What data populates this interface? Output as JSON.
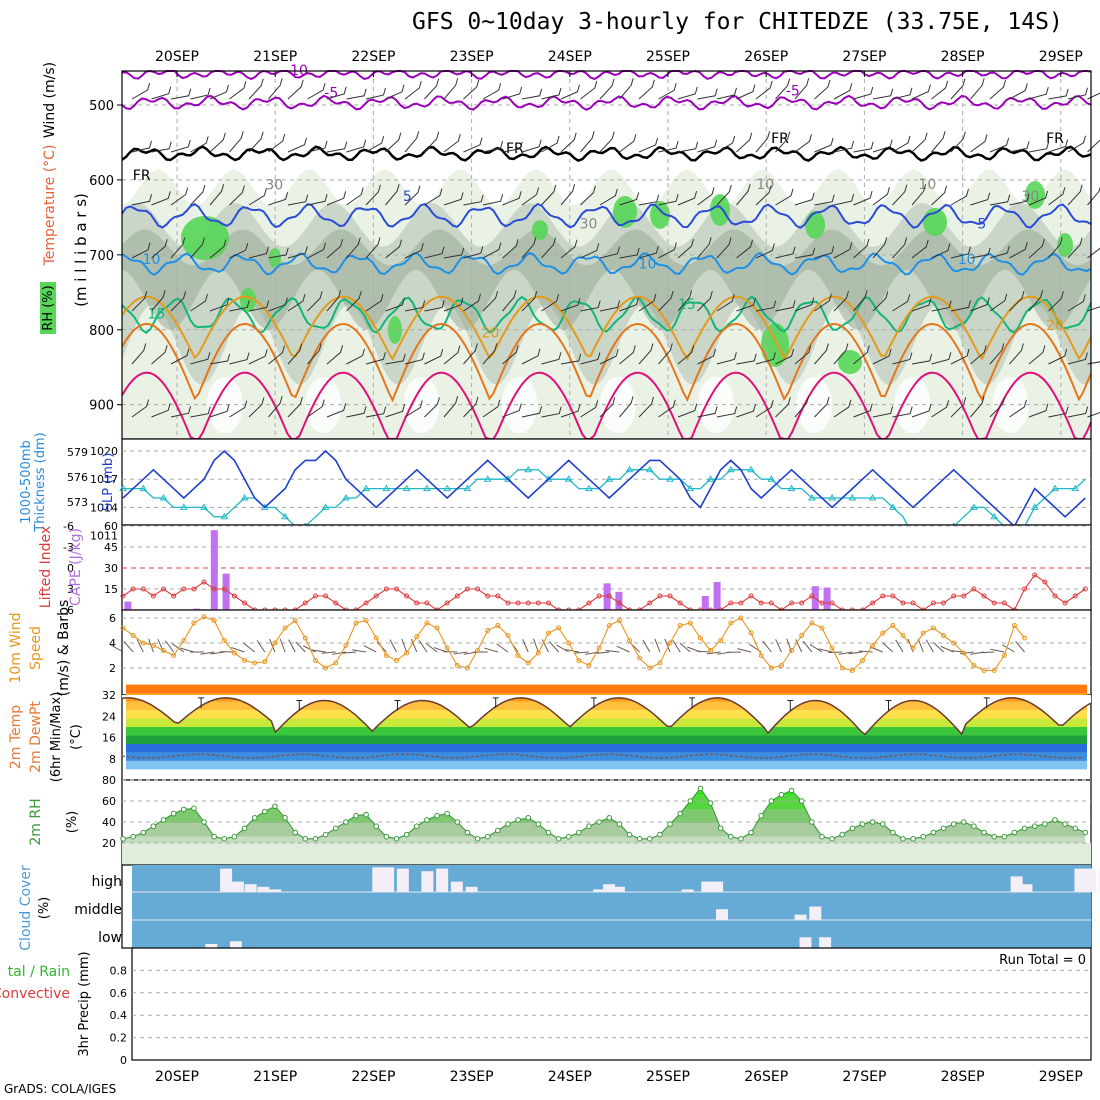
{
  "title": "GFS 0~10day 3-hourly for CHITEDZE (33.75E, 14S)",
  "credit": "GrADS: COLA/IGES",
  "colors": {
    "purple_contour": "#9a00b8",
    "freezing": "#000000",
    "blue5": "#2a4bd8",
    "blue10": "#1e90e6",
    "green15": "#12b57a",
    "orange20": "#e59a1a",
    "orange25": "#e5761a",
    "magenta30": "#e0107a",
    "rh_light": "#eaf2e6",
    "rh_mid": "#c4d2c2",
    "rh_dark": "#9aaa98",
    "rh_green": "#57d657",
    "slp": "#1f3fcc",
    "thickness": "#20b8c8",
    "lifted": "#dd3c3c",
    "cape": "#c070f0",
    "wind10m": "#e8961e",
    "cloud_bg": "#66aad6",
    "cloud_cover": "#f4eef6",
    "rh2m": "#3a9a3a"
  },
  "chart_data": [
    {
      "type": "contour",
      "name": "pressure-level panel",
      "ylabel": "(millibars)",
      "legend_labels": [
        "Wind (m/s)",
        "Temperature (°C)",
        "RH (%)"
      ],
      "y_ticks": [
        500,
        600,
        700,
        800,
        900
      ],
      "ylim": [
        1000,
        450
      ],
      "x_dates": [
        "20SEP",
        "21SEP",
        "22SEP",
        "23SEP",
        "24SEP",
        "25SEP",
        "26SEP",
        "27SEP",
        "28SEP",
        "29SEP"
      ],
      "contour_labels": [
        {
          "text": "-10",
          "day": 1.1,
          "p": 460
        },
        {
          "text": "-5",
          "day": 1.5,
          "p": 490
        },
        {
          "text": "-5",
          "day": 6.2,
          "p": 487
        },
        {
          "text": "FR",
          "day": -0.45,
          "p": 600
        },
        {
          "text": "FR",
          "day": 3.35,
          "p": 564
        },
        {
          "text": "FR",
          "day": 6.05,
          "p": 551
        },
        {
          "text": "FR",
          "day": 8.85,
          "p": 551
        },
        {
          "text": "5",
          "day": 2.3,
          "p": 628
        },
        {
          "text": "5",
          "day": 8.15,
          "p": 665
        },
        {
          "text": "10",
          "day": -0.35,
          "p": 712
        },
        {
          "text": "10",
          "day": 4.7,
          "p": 718
        },
        {
          "text": "10",
          "day": 7.95,
          "p": 712
        },
        {
          "text": "15",
          "day": -0.3,
          "p": 785
        },
        {
          "text": "15",
          "day": 5.1,
          "p": 772
        },
        {
          "text": "20",
          "day": 3.1,
          "p": 810
        },
        {
          "text": "20",
          "day": 8.85,
          "p": 800
        },
        {
          "text": "30",
          "day": 0.9,
          "p": 613
        },
        {
          "text": "30",
          "day": 4.1,
          "p": 665
        },
        {
          "text": "10",
          "day": 5.9,
          "p": 612
        },
        {
          "text": "10",
          "day": 7.55,
          "p": 612
        },
        {
          "text": "30",
          "day": 8.6,
          "p": 628
        }
      ],
      "isotherms": [
        {
          "label": "-10",
          "base": 458,
          "amp": 5
        },
        {
          "label": "-5",
          "base": 497,
          "amp": 8
        },
        {
          "label": "FR",
          "base": 565,
          "amp": 8
        },
        {
          "label": "5",
          "base": 648,
          "amp": 18
        },
        {
          "label": "10",
          "base": 712,
          "amp": 16
        },
        {
          "label": "15",
          "base": 780,
          "amp": 30
        },
        {
          "label": "20",
          "base": 840,
          "amp": 45
        },
        {
          "label": "25",
          "base": 895,
          "amp": 55
        },
        {
          "label": "30",
          "base": 960,
          "amp": 55
        }
      ]
    },
    {
      "type": "line",
      "name": "slp-thickness",
      "ylabel_left": "1000-500mb Thickness (dm)",
      "ylabel_right": "SLP (mb)",
      "left_ticks": [
        573,
        576,
        579
      ],
      "right_ticks": [
        1011,
        1014,
        1017,
        1020
      ],
      "series": [
        {
          "name": "SLP",
          "values": [
            1015,
            1016,
            1017,
            1018,
            1017,
            1016,
            1015,
            1016,
            1017,
            1019,
            1020,
            1019,
            1017,
            1015,
            1014,
            1015,
            1016,
            1018,
            1019,
            1019,
            1020,
            1019,
            1017,
            1016,
            1015,
            1014,
            1015,
            1016,
            1017,
            1018,
            1017,
            1016,
            1015,
            1016,
            1017,
            1018,
            1019,
            1018,
            1017,
            1016,
            1015,
            1016,
            1017,
            1018,
            1019,
            1018,
            1017,
            1016,
            1015,
            1016,
            1017,
            1018,
            1019,
            1019,
            1018,
            1017,
            1015,
            1014,
            1016,
            1018,
            1019,
            1018,
            1016,
            1015,
            1016,
            1017,
            1018,
            1017,
            1016,
            1015,
            1014,
            1015,
            1016,
            1017,
            1018,
            1017,
            1016,
            1015,
            1014,
            1015,
            1016,
            1017,
            1018,
            1017,
            1016,
            1015,
            1014,
            1013,
            1012,
            1014,
            1016,
            1015,
            1014,
            1013,
            1014,
            1015
          ]
        },
        {
          "name": "Thickness",
          "values": [
            1016,
            1016,
            1016,
            1015,
            1015,
            1014,
            1014,
            1014,
            1014,
            1013,
            1013,
            1014,
            1015,
            1015,
            1014,
            1014,
            1013,
            1012,
            1012,
            1013,
            1014,
            1014,
            1015,
            1015,
            1016,
            1016,
            1016,
            1016,
            1016,
            1016,
            1016,
            1016,
            1016,
            1016,
            1016,
            1017,
            1017,
            1017,
            1017,
            1018,
            1018,
            1018,
            1017,
            1017,
            1017,
            1016,
            1016,
            1016,
            1017,
            1017,
            1018,
            1018,
            1018,
            1017,
            1017,
            1017,
            1016,
            1016,
            1017,
            1017,
            1018,
            1018,
            1018,
            1017,
            1017,
            1016,
            1016,
            1016,
            1015,
            1015,
            1015,
            1015,
            1015,
            1015,
            1015,
            1015,
            1014,
            1013,
            1011,
            1010,
            1010,
            1011,
            1012,
            1013,
            1014,
            1014,
            1013,
            1012,
            1011,
            1012,
            1014,
            1015,
            1016,
            1016,
            1016,
            1017
          ]
        }
      ]
    },
    {
      "type": "bar+line",
      "name": "cape-lifted",
      "ylabel_left": "Lifted Index",
      "ylabel_right": "CAPE (J/kg)",
      "left_ticks": [
        6,
        3,
        0,
        -3,
        -6
      ],
      "right_ticks": [
        15,
        30,
        45,
        60
      ],
      "lifted_index": [
        4,
        3,
        3,
        4,
        3,
        4,
        3,
        3,
        2,
        3,
        3,
        4,
        5,
        6,
        6,
        6,
        6,
        6,
        5,
        4,
        4,
        5,
        6,
        6,
        5,
        4,
        3,
        3,
        4,
        5,
        5,
        6,
        5,
        4,
        3,
        3,
        4,
        4,
        5,
        5,
        5,
        5,
        5,
        6,
        6,
        6,
        5,
        4,
        4,
        5,
        6,
        6,
        5,
        4,
        4,
        5,
        6,
        6,
        6,
        6,
        5,
        5,
        4,
        5,
        5,
        6,
        5,
        5,
        4,
        5,
        5,
        6,
        6,
        6,
        5,
        4,
        4,
        5,
        5,
        6,
        5,
        5,
        4,
        4,
        3,
        4,
        5,
        5,
        6,
        3,
        1,
        2,
        4,
        5,
        4,
        3
      ],
      "cape": [
        {
          "day": -0.5,
          "value": 6
        },
        {
          "day": 0.2,
          "value": 1
        },
        {
          "day": 0.38,
          "value": 57
        },
        {
          "day": 0.5,
          "value": 26
        },
        {
          "day": 4.38,
          "value": 19
        },
        {
          "day": 4.5,
          "value": 13
        },
        {
          "day": 5.38,
          "value": 10
        },
        {
          "day": 5.5,
          "value": 20
        },
        {
          "day": 6.5,
          "value": 17
        },
        {
          "day": 6.62,
          "value": 16
        }
      ]
    },
    {
      "type": "line",
      "name": "wind10m",
      "ylabel": "10m Wind Speed & Barbs (m/s)",
      "y_ticks": [
        2,
        4,
        6
      ],
      "values": [
        5.2,
        4.6,
        4.0,
        3.8,
        3.4,
        3.0,
        4.2,
        5.6,
        6.1,
        5.8,
        4.2,
        3.2,
        2.6,
        2.4,
        2.5,
        4.0,
        5.2,
        5.8,
        4.4,
        2.6,
        2.0,
        2.4,
        3.8,
        5.6,
        5.8,
        4.4,
        3.0,
        2.6,
        3.2,
        4.5,
        5.6,
        5.2,
        3.6,
        2.2,
        2.0,
        3.4,
        5.0,
        5.4,
        4.6,
        3.0,
        2.4,
        3.2,
        4.8,
        5.2,
        4.0,
        2.6,
        2.2,
        3.6,
        5.4,
        5.8,
        4.2,
        2.8,
        2.0,
        2.4,
        4.0,
        5.4,
        5.6,
        4.4,
        3.4,
        4.2,
        5.6,
        6.0,
        4.8,
        3.0,
        2.0,
        2.2,
        3.4,
        4.6,
        5.6,
        5.2,
        3.6,
        2.0,
        1.8,
        2.6,
        3.8,
        4.8,
        5.4,
        4.6,
        3.6,
        4.8,
        5.2,
        4.6,
        4.0,
        3.2,
        2.2,
        1.8,
        1.8,
        3.0,
        5.4,
        4.4
      ]
    },
    {
      "type": "area",
      "name": "temperature",
      "ylabel": "2m Temp 2m DewPt (6hr Min/Max) (°C)",
      "y_ticks": [
        8,
        16,
        24,
        32
      ],
      "temp_max_days": [
        0.5,
        1.5,
        2.5,
        3.5,
        4.5,
        5.5,
        6.5,
        7.5,
        8.5
      ],
      "temp_max_values": [
        31,
        30,
        30,
        31,
        31,
        31,
        30,
        30,
        31
      ],
      "temp_min_values": [
        21,
        18,
        19,
        20,
        20,
        19,
        17,
        17,
        20
      ],
      "dewpt_mean": 9
    },
    {
      "type": "area",
      "name": "rh2m",
      "ylabel": "2m RH (%)",
      "y_ticks": [
        20,
        40,
        60,
        80
      ],
      "values": [
        24,
        26,
        30,
        36,
        42,
        48,
        52,
        53,
        40,
        26,
        24,
        26,
        34,
        44,
        50,
        55,
        44,
        30,
        24,
        24,
        28,
        34,
        40,
        46,
        47,
        36,
        26,
        24,
        28,
        36,
        42,
        46,
        48,
        40,
        30,
        24,
        26,
        32,
        38,
        42,
        44,
        38,
        30,
        24,
        26,
        30,
        36,
        40,
        44,
        38,
        28,
        24,
        24,
        28,
        38,
        48,
        60,
        72,
        58,
        34,
        26,
        24,
        30,
        46,
        60,
        66,
        70,
        60,
        40,
        26,
        24,
        28,
        34,
        38,
        40,
        38,
        30,
        24,
        24,
        26,
        30,
        34,
        38,
        40,
        36,
        30,
        26,
        26,
        30,
        34,
        36,
        38,
        42,
        38,
        34,
        30
      ]
    },
    {
      "type": "bar",
      "name": "cloud-cover",
      "ylabel": "Cloud Cover (%)",
      "levels": [
        "high",
        "middle",
        "low"
      ],
      "high": [
        {
          "day": 0.5,
          "v": 90
        },
        {
          "day": 0.62,
          "v": 40
        },
        {
          "day": 0.75,
          "v": 30
        },
        {
          "day": 0.88,
          "v": 20
        },
        {
          "day": 1.0,
          "v": 10
        },
        {
          "day": 2.05,
          "v": 95
        },
        {
          "day": 2.15,
          "v": 95
        },
        {
          "day": 2.3,
          "v": 90
        },
        {
          "day": 2.55,
          "v": 80
        },
        {
          "day": 2.7,
          "v": 90
        },
        {
          "day": 2.85,
          "v": 40
        },
        {
          "day": 3.0,
          "v": 20
        },
        {
          "day": 4.3,
          "v": 10
        },
        {
          "day": 4.4,
          "v": 30
        },
        {
          "day": 4.5,
          "v": 20
        },
        {
          "day": 5.2,
          "v": 10
        },
        {
          "day": 5.4,
          "v": 40
        },
        {
          "day": 5.5,
          "v": 40
        },
        {
          "day": 8.55,
          "v": 60
        },
        {
          "day": 8.65,
          "v": 30
        },
        {
          "day": 9.2,
          "v": 90
        },
        {
          "day": 9.3,
          "v": 90
        },
        {
          "day": 9.45,
          "v": 90
        },
        {
          "day": 9.7,
          "v": 60
        },
        {
          "day": 9.95,
          "v": 90
        }
      ],
      "middle": [
        {
          "day": 5.55,
          "v": 40
        },
        {
          "day": 6.35,
          "v": 20
        },
        {
          "day": 6.5,
          "v": 50
        }
      ],
      "low": [
        {
          "day": 0.35,
          "v": 15
        },
        {
          "day": 0.6,
          "v": 25
        },
        {
          "day": 6.4,
          "v": 40
        },
        {
          "day": 6.6,
          "v": 40
        }
      ]
    },
    {
      "type": "bar",
      "name": "precipitation",
      "ylabel": "3hr Precip (mm)",
      "legend_labels": [
        "Total / Rain",
        "Convective"
      ],
      "y_ticks": [
        0,
        0.2,
        0.4,
        0.6,
        0.8
      ],
      "ylim": [
        0,
        0.9
      ],
      "run_total": "Run Total = 0",
      "values": []
    }
  ],
  "labels": {
    "wind": "Wind (m/s)",
    "temperature": "Temperature (°C)",
    "rh": "RH (%)",
    "millibars": "(m i l l i b a r s)",
    "thickness": "1000-500mb",
    "thickness2": "Thickness (dm)",
    "slp": "SLP (mb)",
    "lifted": "Lifted Index",
    "cape": "CAPE (J/kg)",
    "wind10m": "10m Wind",
    "speed": "Speed",
    "barbs": "(m/s) & Barbs",
    "temp2m": "2m Temp",
    "dewpt": "2m DewPt",
    "minmax": "(6hr Min/Max)",
    "degc": "(°C)",
    "rh2m": "2m RH",
    "pct": "(%)",
    "cloud": "Cloud Cover",
    "cloudpct": "(%)",
    "totalrain": "tal / Rain",
    "convective": "Convective",
    "precip": "3hr Precip (mm)",
    "high": "high",
    "middle": "middle",
    "low": "low",
    "run_total": "Run Total = 0"
  }
}
